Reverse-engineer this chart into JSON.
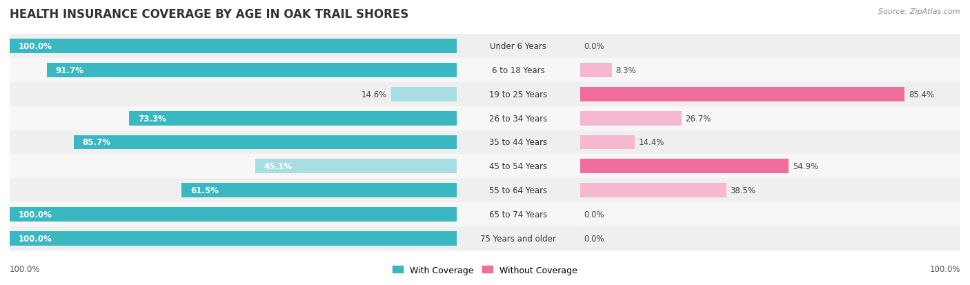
{
  "title": "HEALTH INSURANCE COVERAGE BY AGE IN OAK TRAIL SHORES",
  "source": "Source: ZipAtlas.com",
  "categories": [
    "Under 6 Years",
    "6 to 18 Years",
    "19 to 25 Years",
    "26 to 34 Years",
    "35 to 44 Years",
    "45 to 54 Years",
    "55 to 64 Years",
    "65 to 74 Years",
    "75 Years and older"
  ],
  "with_coverage": [
    100.0,
    91.7,
    14.6,
    73.3,
    85.7,
    45.1,
    61.5,
    100.0,
    100.0
  ],
  "without_coverage": [
    0.0,
    8.3,
    85.4,
    26.7,
    14.4,
    54.9,
    38.5,
    0.0,
    0.0
  ],
  "color_with_strong": "#3ab8c2",
  "color_with_light": "#a8dde2",
  "color_without_strong": "#f06d9e",
  "color_without_light": "#f5b8d0",
  "row_bg_odd": "#efefef",
  "row_bg_even": "#f7f7f7",
  "title_fontsize": 12,
  "bar_label_fontsize": 8.5,
  "cat_label_fontsize": 8.5,
  "legend_fontsize": 9,
  "source_fontsize": 8,
  "bottom_label": "100.0%"
}
